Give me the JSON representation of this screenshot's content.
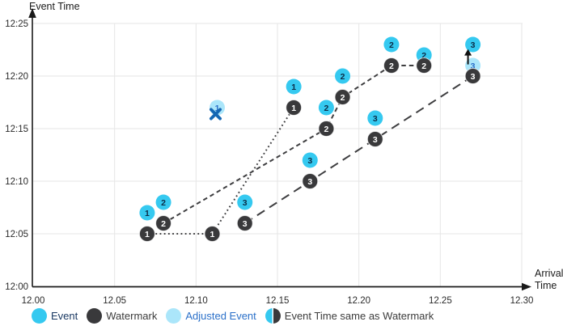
{
  "chart_data": {
    "type": "scatter",
    "title": "",
    "x_axis": {
      "label": "Arrival Time",
      "label_lines": [
        "Arrival",
        "Time"
      ],
      "min": 12.0,
      "max": 12.3,
      "ticks": [
        "12.00",
        "12.05",
        "12.10",
        "12.15",
        "12.20",
        "12.25",
        "12.30"
      ]
    },
    "y_axis": {
      "label": "Event Time",
      "min": "12:00",
      "max": "12:25",
      "ticks": [
        "12:00",
        "12:05",
        "12:10",
        "12:15",
        "12:20",
        "12:25"
      ]
    },
    "grid": true,
    "legend_position": "bottom",
    "series": [
      {
        "id": "stream-1",
        "line_style": "dotted",
        "watermark_path": [
          {
            "arrival": 12.07,
            "event_time": "12:05"
          },
          {
            "arrival": 12.11,
            "event_time": "12:05"
          },
          {
            "arrival": 12.16,
            "event_time": "12:17"
          }
        ],
        "points": [
          {
            "kind": "event",
            "label": "1",
            "arrival": 12.07,
            "event_time": "12:07"
          },
          {
            "kind": "event",
            "label": "1",
            "arrival": 12.16,
            "event_time": "12:19"
          },
          {
            "kind": "adjusted",
            "label": "1",
            "arrival": 12.113,
            "event_time": "12:17",
            "crossed_out": true
          },
          {
            "kind": "watermark",
            "label": "1",
            "arrival": 12.07,
            "event_time": "12:05"
          },
          {
            "kind": "watermark",
            "label": "1",
            "arrival": 12.11,
            "event_time": "12:05"
          },
          {
            "kind": "watermark",
            "label": "1",
            "arrival": 12.16,
            "event_time": "12:17"
          }
        ]
      },
      {
        "id": "stream-2",
        "line_style": "dashed",
        "watermark_path": [
          {
            "arrival": 12.08,
            "event_time": "12:06"
          },
          {
            "arrival": 12.18,
            "event_time": "12:15"
          },
          {
            "arrival": 12.19,
            "event_time": "12:18"
          },
          {
            "arrival": 12.22,
            "event_time": "12:21"
          },
          {
            "arrival": 12.24,
            "event_time": "12:21"
          }
        ],
        "points": [
          {
            "kind": "event",
            "label": "2",
            "arrival": 12.08,
            "event_time": "12:08"
          },
          {
            "kind": "event",
            "label": "2",
            "arrival": 12.18,
            "event_time": "12:17"
          },
          {
            "kind": "event",
            "label": "2",
            "arrival": 12.19,
            "event_time": "12:20"
          },
          {
            "kind": "event",
            "label": "2",
            "arrival": 12.22,
            "event_time": "12:23"
          },
          {
            "kind": "event",
            "label": "2",
            "arrival": 12.24,
            "event_time": "12:22"
          },
          {
            "kind": "watermark",
            "label": "2",
            "arrival": 12.08,
            "event_time": "12:06"
          },
          {
            "kind": "watermark",
            "label": "2",
            "arrival": 12.18,
            "event_time": "12:15"
          },
          {
            "kind": "watermark",
            "label": "2",
            "arrival": 12.19,
            "event_time": "12:18"
          },
          {
            "kind": "watermark",
            "label": "2",
            "arrival": 12.22,
            "event_time": "12:21"
          },
          {
            "kind": "watermark",
            "label": "2",
            "arrival": 12.24,
            "event_time": "12:21"
          }
        ]
      },
      {
        "id": "stream-3",
        "line_style": "long-dash",
        "watermark_path": [
          {
            "arrival": 12.13,
            "event_time": "12:06"
          },
          {
            "arrival": 12.17,
            "event_time": "12:10"
          },
          {
            "arrival": 12.21,
            "event_time": "12:14"
          },
          {
            "arrival": 12.27,
            "event_time": "12:20"
          }
        ],
        "points": [
          {
            "kind": "event",
            "label": "3",
            "arrival": 12.13,
            "event_time": "12:08"
          },
          {
            "kind": "event",
            "label": "3",
            "arrival": 12.17,
            "event_time": "12:12"
          },
          {
            "kind": "event",
            "label": "3",
            "arrival": 12.21,
            "event_time": "12:16"
          },
          {
            "kind": "event",
            "label": "3",
            "arrival": 12.27,
            "event_time": "12:23"
          },
          {
            "kind": "adjusted",
            "label": "3",
            "arrival": 12.27,
            "event_time": "12:21",
            "crossed_out": false
          },
          {
            "kind": "watermark",
            "label": "3",
            "arrival": 12.13,
            "event_time": "12:06"
          },
          {
            "kind": "watermark",
            "label": "3",
            "arrival": 12.17,
            "event_time": "12:10"
          },
          {
            "kind": "watermark",
            "label": "3",
            "arrival": 12.21,
            "event_time": "12:14"
          },
          {
            "kind": "watermark",
            "label": "3",
            "arrival": 12.27,
            "event_time": "12:20"
          }
        ]
      }
    ],
    "annotations": [
      {
        "kind": "up-arrow",
        "arrival": 12.267,
        "event_time": "12:21.8"
      }
    ]
  },
  "legend": {
    "items": [
      {
        "id": "event",
        "label": "Event"
      },
      {
        "id": "watermark",
        "label": "Watermark"
      },
      {
        "id": "adjusted-event",
        "label": "Adjusted Event"
      },
      {
        "id": "event-same-as-watermark",
        "label": "Event Time same as Watermark"
      }
    ]
  },
  "colors": {
    "event_fill": "#35C9F0",
    "event_text": "#0B2C47",
    "watermark_fill": "#39393B",
    "watermark_text": "#FFFFFF",
    "adjusted_fill": "#ABE6FA",
    "adjusted_text": "#2B70C9",
    "line": "#3E3E40",
    "grid": "#E6E6E6",
    "axis": "#1A1A1A",
    "tick_text": "#2B2B2B",
    "x_mark": "#1567B4",
    "arrow": "#111111",
    "legend_event_text": "#1B3A63",
    "legend_adjusted_text": "#2B70C9",
    "legend_text": "#3C3C3C"
  }
}
